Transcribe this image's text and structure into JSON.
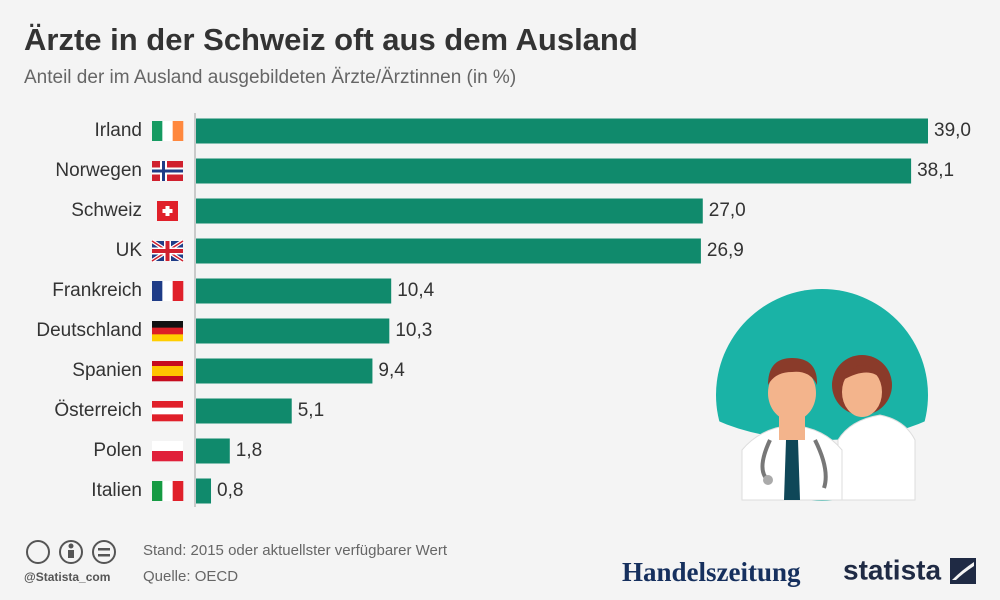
{
  "chart_data": {
    "type": "bar",
    "orientation": "horizontal",
    "title": "Ärzte in der Schweiz oft aus dem Ausland",
    "subtitle": "Anteil der im Ausland ausgebildeten Ärzte/Ärztinnen (in %)",
    "categories": [
      "Irland",
      "Norwegen",
      "Schweiz",
      "UK",
      "Frankreich",
      "Deutschland",
      "Spanien",
      "Österreich",
      "Polen",
      "Italien"
    ],
    "values": [
      39.0,
      38.1,
      27.0,
      26.9,
      10.4,
      10.3,
      9.4,
      5.1,
      1.8,
      0.8
    ],
    "value_labels": [
      "39,0",
      "38,1",
      "27,0",
      "26,9",
      "10,4",
      "10,3",
      "9,4",
      "5,1",
      "1,8",
      "0,8"
    ],
    "color": "#108a6c",
    "note": "Stand: 2015 oder aktuellster verfügbarer Wert",
    "source": "Quelle: OECD",
    "credit": "@Statista_com",
    "publisher": "Handelszeitung",
    "brand": "statista"
  }
}
